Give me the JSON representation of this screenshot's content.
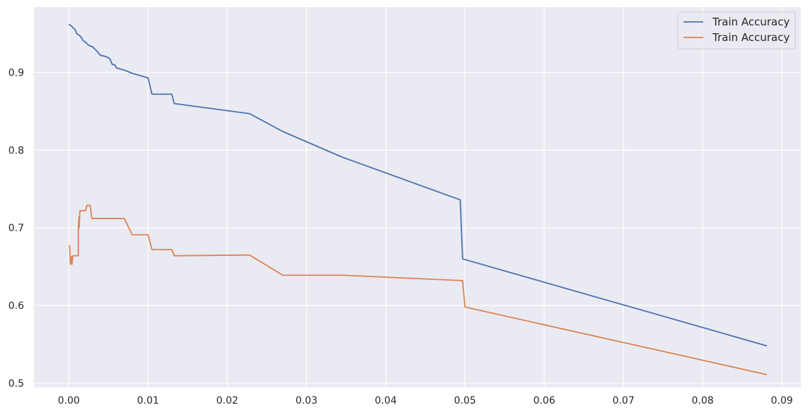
{
  "chart_data": {
    "type": "line",
    "title": "",
    "xlabel": "",
    "ylabel": "",
    "xlim": [
      -0.0044,
      0.0924
    ],
    "ylim": [
      0.4945,
      0.9842
    ],
    "xticks": [
      0.0,
      0.01,
      0.02,
      0.03,
      0.04,
      0.05,
      0.06,
      0.07,
      0.08,
      0.09
    ],
    "xtick_labels": [
      "0.00",
      "0.01",
      "0.02",
      "0.03",
      "0.04",
      "0.05",
      "0.06",
      "0.07",
      "0.08",
      "0.09"
    ],
    "yticks": [
      0.5,
      0.6,
      0.7,
      0.8,
      0.9
    ],
    "ytick_labels": [
      "0.5",
      "0.6",
      "0.7",
      "0.8",
      "0.9"
    ],
    "grid": true,
    "legend_position": "top-right",
    "background": "#eaeaf2",
    "series": [
      {
        "name": "Train Accuracy",
        "color": "#4c72b0",
        "points": [
          [
            0.0,
            0.962
          ],
          [
            0.0003,
            0.96
          ],
          [
            0.0006,
            0.957
          ],
          [
            0.0008,
            0.955
          ],
          [
            0.001,
            0.95
          ],
          [
            0.0013,
            0.948
          ],
          [
            0.0016,
            0.945
          ],
          [
            0.0018,
            0.941
          ],
          [
            0.0021,
            0.939
          ],
          [
            0.0025,
            0.935
          ],
          [
            0.003,
            0.933
          ],
          [
            0.0035,
            0.928
          ],
          [
            0.004,
            0.922
          ],
          [
            0.0045,
            0.921
          ],
          [
            0.005,
            0.919
          ],
          [
            0.0052,
            0.917
          ],
          [
            0.0055,
            0.91
          ],
          [
            0.0058,
            0.91
          ],
          [
            0.006,
            0.906
          ],
          [
            0.007,
            0.903
          ],
          [
            0.008,
            0.899
          ],
          [
            0.01,
            0.893
          ],
          [
            0.0105,
            0.872
          ],
          [
            0.013,
            0.872
          ],
          [
            0.0133,
            0.86
          ],
          [
            0.0228,
            0.847
          ],
          [
            0.027,
            0.824
          ],
          [
            0.0345,
            0.791
          ],
          [
            0.0494,
            0.736
          ],
          [
            0.0497,
            0.66
          ],
          [
            0.0881,
            0.548
          ]
        ]
      },
      {
        "name": "Train Accuracy",
        "color": "#dd8452",
        "points": [
          [
            0.0,
            0.677
          ],
          [
            0.0001,
            0.677
          ],
          [
            0.0002,
            0.653
          ],
          [
            0.0003,
            0.663
          ],
          [
            0.0004,
            0.653
          ],
          [
            0.0005,
            0.664
          ],
          [
            0.0012,
            0.664
          ],
          [
            0.0012,
            0.702
          ],
          [
            0.0013,
            0.715
          ],
          [
            0.0013,
            0.7
          ],
          [
            0.0014,
            0.722
          ],
          [
            0.0021,
            0.722
          ],
          [
            0.0023,
            0.729
          ],
          [
            0.0027,
            0.729
          ],
          [
            0.0029,
            0.712
          ],
          [
            0.007,
            0.712
          ],
          [
            0.008,
            0.691
          ],
          [
            0.01,
            0.691
          ],
          [
            0.0105,
            0.672
          ],
          [
            0.013,
            0.672
          ],
          [
            0.0133,
            0.664
          ],
          [
            0.0228,
            0.665
          ],
          [
            0.027,
            0.639
          ],
          [
            0.0345,
            0.639
          ],
          [
            0.0497,
            0.632
          ],
          [
            0.05,
            0.598
          ],
          [
            0.0881,
            0.511
          ]
        ]
      }
    ]
  }
}
